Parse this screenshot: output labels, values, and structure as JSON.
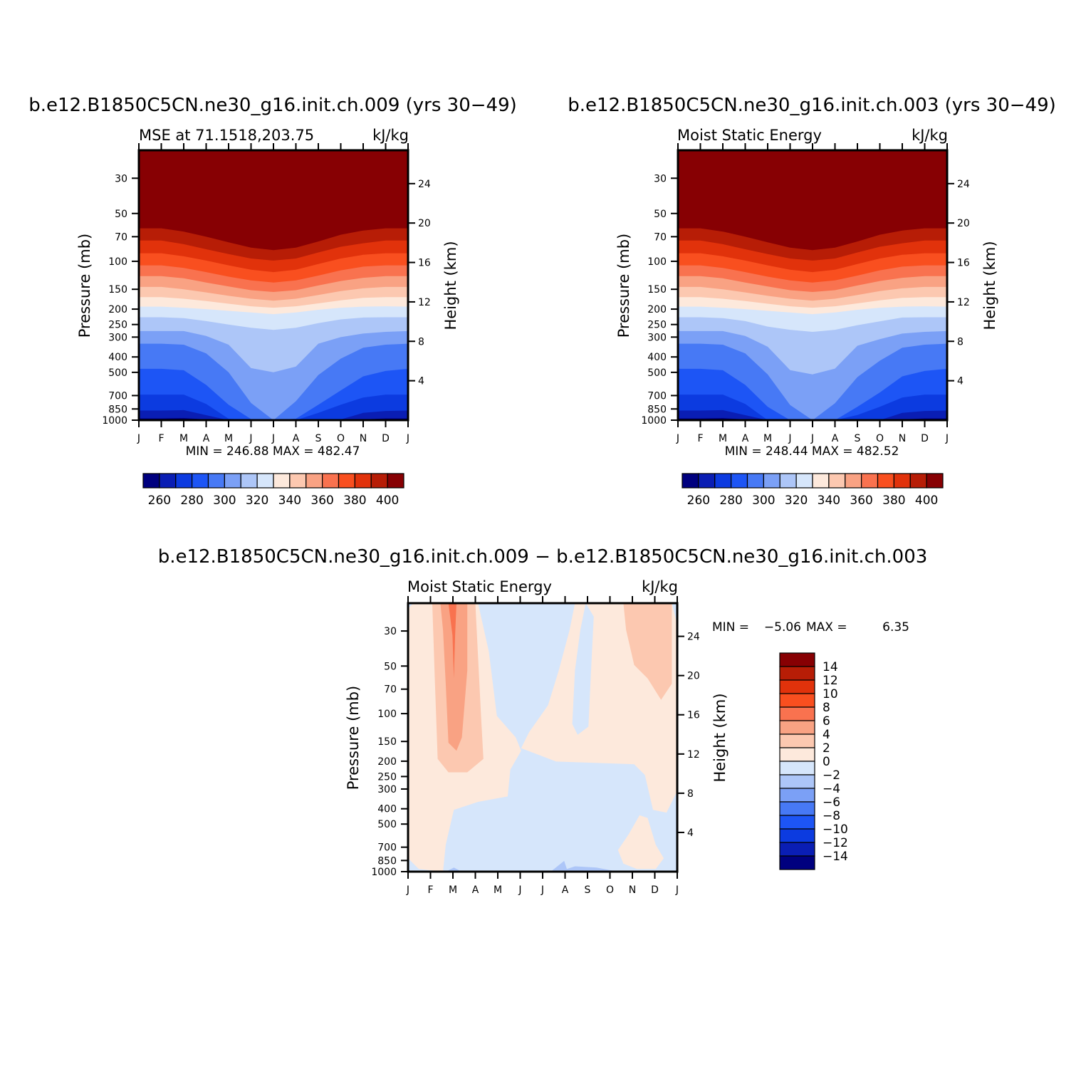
{
  "months": [
    "J",
    "F",
    "M",
    "A",
    "M",
    "J",
    "J",
    "A",
    "S",
    "O",
    "N",
    "D",
    "J"
  ],
  "pressure_ticks": [
    "30",
    "50",
    "70",
    "100",
    "150",
    "200",
    "250",
    "300",
    "400",
    "500",
    "700",
    "850",
    "1000"
  ],
  "height_ticks": [
    "24",
    "20",
    "16",
    "12",
    "8",
    "4"
  ],
  "colors": {
    "mse_levels": [
      "#00007f",
      "#0a1eb4",
      "#0c3be0",
      "#1d55f5",
      "#4779f5",
      "#7ba0f6",
      "#adc6f8",
      "#d6e6fb",
      "#fde9dc",
      "#fcc8b0",
      "#f9a283",
      "#f9724f",
      "#f94f1f",
      "#e1320b",
      "#b71d06",
      "#870003"
    ],
    "diff_levels": [
      "#00007f",
      "#0a1eb4",
      "#0c3be0",
      "#1d55f5",
      "#4779f5",
      "#7ba0f6",
      "#adc6f8",
      "#d6e6fb",
      "#fde9dc",
      "#fcc8b0",
      "#f9a283",
      "#f9724f",
      "#f94f1f",
      "#e1320b",
      "#b71d06",
      "#870003"
    ]
  },
  "chart_data": [
    {
      "type": "heatmap",
      "title": "b.e12.B1850C5CN.ne30_g16.init.ch.009 (yrs 30−49)",
      "subtitle_left": "MSE at 71.1518,203.75",
      "units": "kJ/kg",
      "xlabel": "",
      "ylabel": "Pressure (mb)",
      "ylabel_right": "Height (km)",
      "x": [
        "J",
        "F",
        "M",
        "A",
        "M",
        "J",
        "J",
        "A",
        "S",
        "O",
        "N",
        "D",
        "J"
      ],
      "y_pressure": [
        1000,
        850,
        700,
        500,
        400,
        300,
        250,
        200,
        150,
        100,
        70,
        50,
        30
      ],
      "ylim": [
        1000,
        20
      ],
      "y_scale": "log",
      "stats": "MIN = 246.88 MAX = 482.47",
      "colorbar": {
        "orientation": "horizontal",
        "levels": [
          260,
          270,
          280,
          290,
          300,
          310,
          320,
          330,
          340,
          350,
          360,
          370,
          380,
          390,
          400
        ],
        "tick_labels": [
          "260",
          "280",
          "300",
          "320",
          "340",
          "360",
          "380",
          "400"
        ]
      }
    },
    {
      "type": "heatmap",
      "title": "b.e12.B1850C5CN.ne30_g16.init.ch.003 (yrs 30−49)",
      "subtitle_left": "Moist Static Energy",
      "units": "kJ/kg",
      "ylabel": "Pressure (mb)",
      "ylabel_right": "Height (km)",
      "x": [
        "J",
        "F",
        "M",
        "A",
        "M",
        "J",
        "J",
        "A",
        "S",
        "O",
        "N",
        "D",
        "J"
      ],
      "y_pressure": [
        1000,
        850,
        700,
        500,
        400,
        300,
        250,
        200,
        150,
        100,
        70,
        50,
        30
      ],
      "ylim": [
        1000,
        20
      ],
      "y_scale": "log",
      "stats": "MIN = 248.44 MAX = 482.52",
      "colorbar": {
        "orientation": "horizontal",
        "levels": [
          260,
          270,
          280,
          290,
          300,
          310,
          320,
          330,
          340,
          350,
          360,
          370,
          380,
          390,
          400
        ],
        "tick_labels": [
          "260",
          "280",
          "300",
          "320",
          "340",
          "360",
          "380",
          "400"
        ]
      }
    },
    {
      "type": "heatmap",
      "title": "b.e12.B1850C5CN.ne30_g16.init.ch.009 − b.e12.B1850C5CN.ne30_g16.init.ch.003",
      "subtitle_left": "Moist Static Energy",
      "units": "kJ/kg",
      "ylabel": "Pressure (mb)",
      "ylabel_right": "Height (km)",
      "x": [
        "J",
        "F",
        "M",
        "A",
        "M",
        "J",
        "J",
        "A",
        "S",
        "O",
        "N",
        "D",
        "J"
      ],
      "y_pressure": [
        1000,
        850,
        700,
        500,
        400,
        300,
        250,
        200,
        150,
        100,
        70,
        50,
        30
      ],
      "ylim": [
        1000,
        20
      ],
      "y_scale": "log",
      "stats_min_label": "MIN =",
      "stats_min": "−5.06",
      "stats_max_label": "MAX =",
      "stats_max": "6.35",
      "colorbar": {
        "orientation": "vertical",
        "levels": [
          -14,
          -12,
          -10,
          -8,
          -6,
          -4,
          -2,
          0,
          2,
          4,
          6,
          8,
          10,
          12,
          14
        ],
        "tick_labels": [
          "14",
          "12",
          "10",
          "8",
          "6",
          "4",
          "2",
          "0",
          "−2",
          "−4",
          "−6",
          "−8",
          "−10",
          "−12",
          "−14"
        ]
      }
    }
  ]
}
